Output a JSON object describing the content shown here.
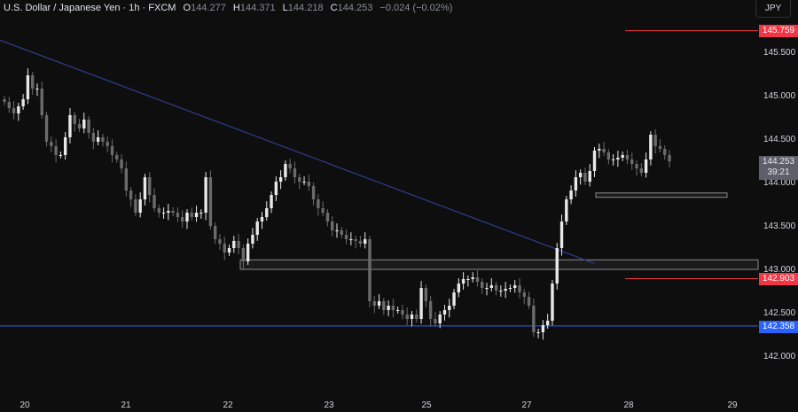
{
  "header": {
    "symbol": "U.S. Dollar / Japanese Yen · 1h · FXCM",
    "open_label": "O",
    "open": "144.277",
    "high_label": "H",
    "high": "144.371",
    "low_label": "L",
    "low": "144.218",
    "close_label": "C",
    "close": "144.253",
    "change": "−0.024 (−0.02%)"
  },
  "currency_button": "JPY",
  "price_tags": {
    "resistance": "145.759",
    "resistance_color": "#f23645",
    "support_red": "142.903",
    "support_blue": "142.358",
    "support_blue_color": "#2962ff",
    "current": "144.253",
    "countdown": "39:21"
  },
  "chart_data": {
    "type": "candlestick",
    "title": "",
    "xlabel": "",
    "ylabel": "",
    "ylim": [
      141.45,
      146.1
    ],
    "grid": false,
    "x_tick_labels": [
      "20",
      "21",
      "22",
      "23",
      "25",
      "27",
      "28",
      "29"
    ],
    "y_tick_labels": [
      "145.500",
      "145.000",
      "144.500",
      "144.000",
      "143.500",
      "143.000",
      "142.500",
      "142.000"
    ],
    "y_ticks": [
      145.5,
      145.0,
      144.5,
      144.0,
      143.5,
      143.0,
      142.5,
      142.0
    ],
    "closes": [
      144.939,
      144.867,
      144.806,
      144.888,
      144.969,
      145.245,
      145.092,
      145.092,
      144.786,
      144.48,
      144.429,
      144.327,
      144.327,
      144.531,
      144.786,
      144.684,
      144.633,
      144.735,
      144.582,
      144.48,
      144.531,
      144.48,
      144.429,
      144.327,
      144.276,
      144.173,
      143.918,
      143.816,
      143.663,
      143.816,
      144.071,
      143.867,
      143.714,
      143.663,
      143.663,
      143.684,
      143.663,
      143.612,
      143.561,
      143.663,
      143.612,
      143.663,
      143.663,
      144.071,
      143.51,
      143.357,
      143.306,
      143.204,
      143.255,
      143.337,
      143.255,
      143.102,
      143.306,
      143.408,
      143.561,
      143.612,
      143.714,
      143.867,
      144.02,
      144.071,
      144.224,
      144.173,
      144.071,
      144.02,
      144.02,
      143.969,
      143.816,
      143.714,
      143.663,
      143.561,
      143.459,
      143.459,
      143.408,
      143.357,
      143.357,
      143.337,
      143.306,
      143.357,
      142.643,
      142.592,
      142.643,
      142.541,
      142.592,
      142.541,
      142.541,
      142.49,
      142.439,
      142.49,
      142.439,
      142.796,
      142.643,
      142.439,
      142.388,
      142.49,
      142.541,
      142.592,
      142.745,
      142.847,
      142.898,
      142.898,
      142.918,
      142.867,
      142.796,
      142.796,
      142.827,
      142.765,
      142.765,
      142.786,
      142.796,
      142.827,
      142.745,
      142.694,
      142.592,
      142.286,
      142.286,
      142.367,
      142.418,
      142.847,
      143.255,
      143.561,
      143.816,
      143.918,
      144.071,
      144.122,
      144.02,
      144.143,
      144.378,
      144.398,
      144.357,
      144.276,
      144.276,
      144.296,
      144.327,
      144.276,
      144.224,
      144.173,
      144.122,
      144.276,
      144.561,
      144.429,
      144.398,
      144.327,
      144.253
    ],
    "trendline": {
      "start_price": 145.65,
      "end_price": 143.08,
      "color": "#2e3f8f"
    },
    "horizontal_lines": [
      {
        "price": 142.358,
        "color": "#2962ff"
      },
      {
        "price": 145.759,
        "color": "#f23645"
      },
      {
        "price": 142.903,
        "color": "#f23645"
      }
    ],
    "zones": [
      {
        "top": 143.12,
        "bottom": 143.01
      },
      {
        "top": 143.89,
        "bottom": 143.84
      }
    ],
    "candle_up_color": "#e8e8e8",
    "candle_down_color": "#6b6b6b"
  }
}
